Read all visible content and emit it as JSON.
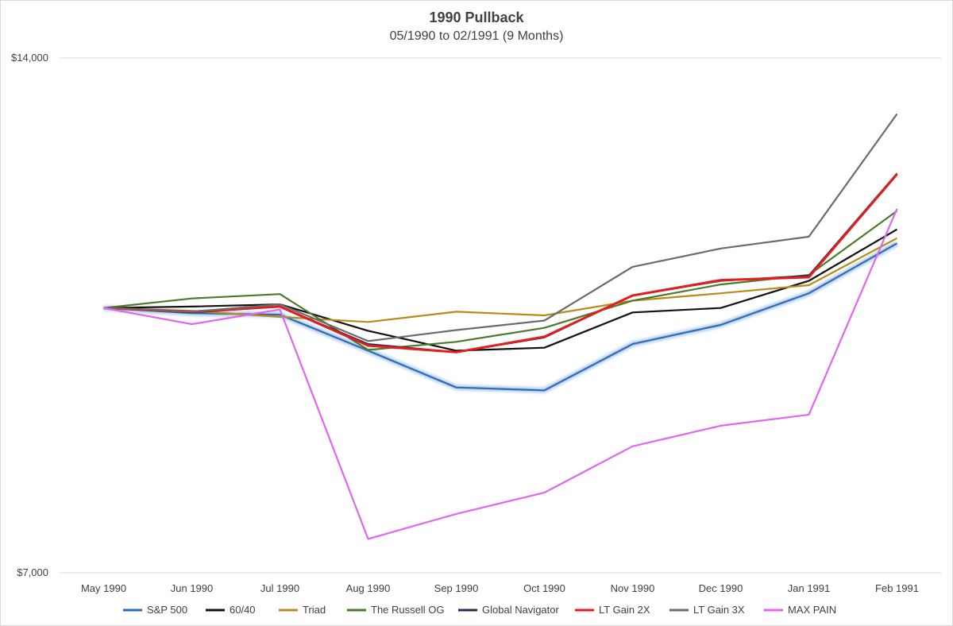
{
  "chart_data": {
    "type": "line",
    "title": "1990 Pullback",
    "subtitle": "05/1990 to 02/1991 (9 Months)",
    "xlabel": "",
    "ylabel": "",
    "categories": [
      "May 1990",
      "Jun 1990",
      "Jul 1990",
      "Aug 1990",
      "Sep 1990",
      "Oct 1990",
      "Nov 1990",
      "Dec 1990",
      "Jan 1991",
      "Feb 1991"
    ],
    "ylim": [
      7000,
      14000
    ],
    "y_tick_labels": [
      "$14,000",
      "$7,000"
    ],
    "y_ticks": [
      14000,
      7000
    ],
    "grid": "horizontal",
    "legend_position": "bottom",
    "series": [
      {
        "name": "S&P 500",
        "color": "#2f6db5",
        "glow": true,
        "values": [
          10600,
          10530,
          10510,
          10020,
          9520,
          9480,
          10110,
          10370,
          10800,
          11480
        ]
      },
      {
        "name": "60/40",
        "color": "#111111",
        "values": [
          10600,
          10620,
          10650,
          10290,
          10020,
          10060,
          10540,
          10600,
          10970,
          11670
        ]
      },
      {
        "name": "Triad",
        "color": "#b88a1a",
        "values": [
          10600,
          10560,
          10480,
          10410,
          10550,
          10500,
          10700,
          10800,
          10910,
          11550
        ]
      },
      {
        "name": "The Russell OG",
        "color": "#4a7a2a",
        "values": [
          10600,
          10730,
          10790,
          10030,
          10140,
          10330,
          10700,
          10920,
          11050,
          11920
        ]
      },
      {
        "name": "Global Navigator",
        "color": "#1f2f4f",
        "values": [
          10600,
          10540,
          10620,
          10110,
          10000,
          10200,
          10770,
          10970,
          11040,
          12430
        ]
      },
      {
        "name": "LT Gain 2X",
        "color": "#e41e1e",
        "values": [
          10600,
          10550,
          10620,
          10090,
          10000,
          10210,
          10770,
          10980,
          11020,
          12420
        ]
      },
      {
        "name": "LT Gain 3X",
        "color": "#6b6b6b",
        "values": [
          10600,
          10550,
          10650,
          10150,
          10300,
          10430,
          11160,
          11410,
          11570,
          13240
        ]
      },
      {
        "name": "MAX PAIN",
        "color": "#e066f0",
        "values": [
          10600,
          10380,
          10580,
          7460,
          7800,
          8090,
          8720,
          9000,
          9150,
          11950
        ]
      }
    ]
  }
}
